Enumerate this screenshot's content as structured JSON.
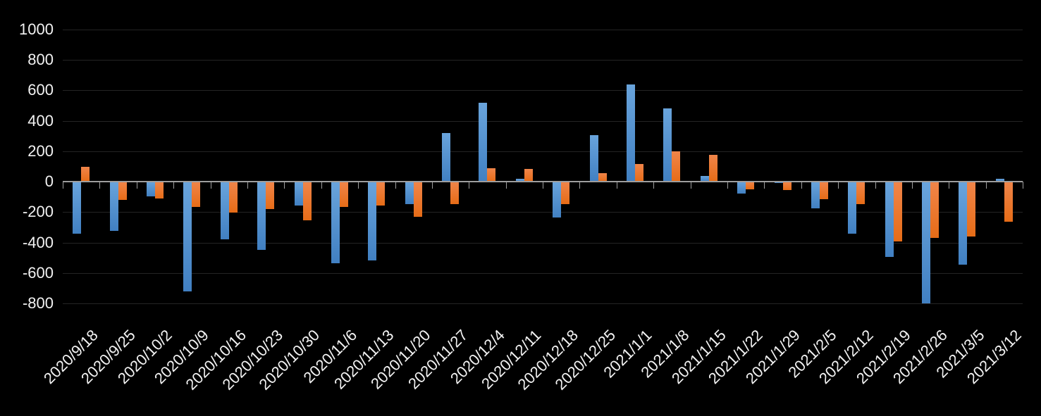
{
  "chart_data": {
    "type": "bar",
    "title": "",
    "xlabel": "",
    "ylabel": "",
    "categories": [
      "2020/9/18",
      "2020/9/25",
      "2020/10/2",
      "2020/10/9",
      "2020/10/16",
      "2020/10/23",
      "2020/10/30",
      "2020/11/6",
      "2020/11/13",
      "2020/11/20",
      "2020/11/27",
      "2020/12/4",
      "2020/12/11",
      "2020/12/18",
      "2020/12/25",
      "2021/1/1",
      "2021/1/8",
      "2021/1/15",
      "2021/1/22",
      "2021/1/29",
      "2021/2/5",
      "2021/2/12",
      "2021/2/19",
      "2021/2/26",
      "2021/3/5",
      "2021/3/12"
    ],
    "series": [
      {
        "name": "blue",
        "color_top": "#69A4DC",
        "color_bottom": "#4180C2",
        "values": [
          -340,
          -325,
          -95,
          -720,
          -380,
          -450,
          -155,
          -535,
          -520,
          -150,
          320,
          520,
          20,
          -235,
          305,
          640,
          480,
          40,
          -80,
          -10,
          -175,
          -340,
          -495,
          -800,
          -545,
          20
        ]
      },
      {
        "name": "orange",
        "color_top": "#F0854A",
        "color_bottom": "#E66C17",
        "values": [
          100,
          -120,
          -110,
          -165,
          -205,
          -180,
          -255,
          -165,
          -155,
          -230,
          -150,
          90,
          85,
          -150,
          55,
          115,
          200,
          175,
          -50,
          -55,
          -115,
          -150,
          -395,
          -370,
          -360,
          -265
        ]
      }
    ],
    "yticks": [
      "1000",
      "800",
      "600",
      "400",
      "200",
      "0",
      "-200",
      "-400",
      "-600",
      "-800"
    ],
    "ylim": [
      -800,
      1000
    ],
    "ytick_interval": 200,
    "grid": true,
    "legend": false,
    "colors": {
      "background": "#000000",
      "gridline": "#242424",
      "axis_line": "#9E9E9E",
      "tick": "#9E9E9E",
      "label_text": "#F2F2F2"
    }
  }
}
